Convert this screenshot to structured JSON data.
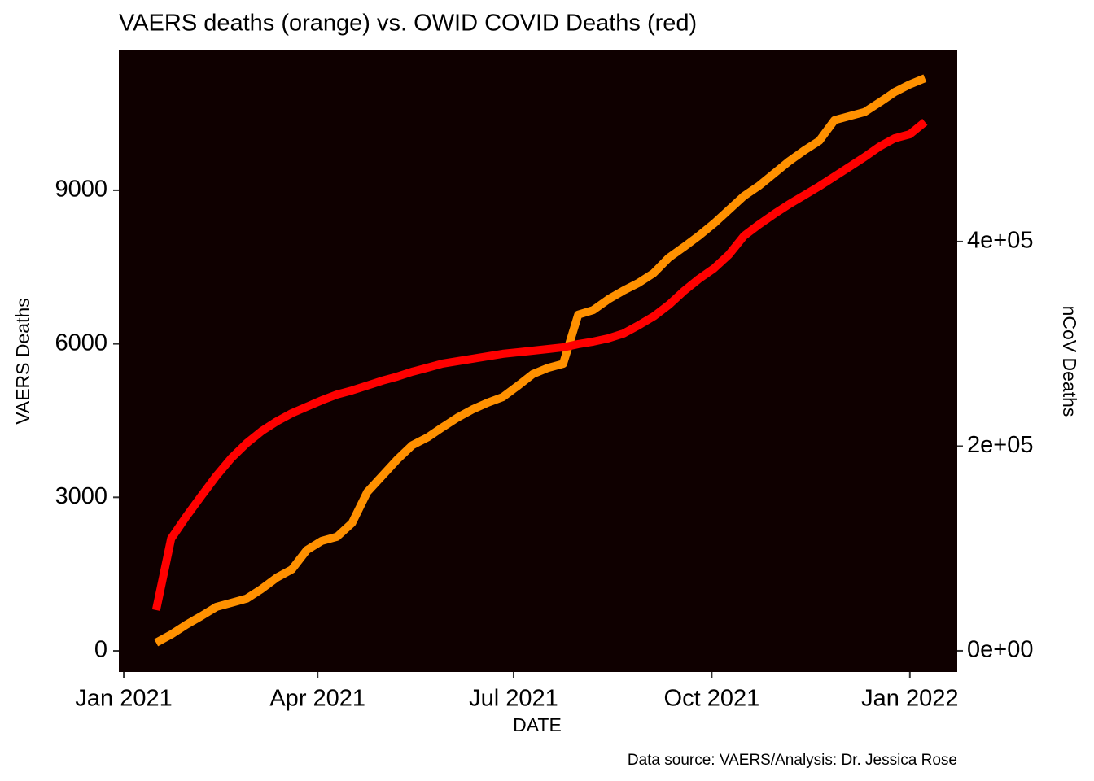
{
  "chart_data": {
    "type": "line",
    "title": "VAERS deaths (orange) vs. OWID COVID Deaths (red)",
    "x_label": "DATE",
    "y_label": "VAERS Deaths",
    "y2_label": "nCoV Deaths",
    "caption": "Data source: VAERS/Analysis: Dr. Jessica Rose",
    "background": "#0f0000",
    "x": [
      15,
      22,
      29,
      36,
      43,
      50,
      57,
      64,
      71,
      78,
      85,
      92,
      99,
      106,
      113,
      120,
      127,
      134,
      141,
      148,
      155,
      162,
      169,
      176,
      183,
      190,
      197,
      204,
      211,
      218,
      225,
      232,
      239,
      246,
      253,
      260,
      267,
      274,
      281,
      288,
      295,
      302,
      309,
      316,
      323,
      330,
      337,
      344,
      351,
      358,
      365,
      372
    ],
    "xlim": [
      -2.3,
      387
    ],
    "xticks": [
      {
        "value": 0,
        "label": "Jan 2021"
      },
      {
        "value": 90,
        "label": "Apr 2021"
      },
      {
        "value": 181,
        "label": "Jul 2021"
      },
      {
        "value": 273,
        "label": "Oct 2021"
      },
      {
        "value": 365,
        "label": "Jan 2022"
      }
    ],
    "ylim": [
      -413,
      11733
    ],
    "yticks": [
      0,
      3000,
      6000,
      9000
    ],
    "y2lim": [
      -20700,
      586800
    ],
    "y2ticks": [
      {
        "value": 0,
        "label": "0e+00"
      },
      {
        "value": 200000,
        "label": "2e+05"
      },
      {
        "value": 400000,
        "label": "4e+05"
      }
    ],
    "series": [
      {
        "color": "#ff9100",
        "values": [
          160,
          320,
          510,
          680,
          860,
          940,
          1020,
          1210,
          1430,
          1590,
          1970,
          2150,
          2230,
          2500,
          3100,
          3420,
          3740,
          4020,
          4170,
          4370,
          4560,
          4720,
          4850,
          4960,
          5180,
          5410,
          5530,
          5610,
          6570,
          6660,
          6870,
          7040,
          7190,
          7380,
          7680,
          7890,
          8110,
          8350,
          8620,
          8890,
          9090,
          9330,
          9570,
          9780,
          9970,
          10370,
          10450,
          10530,
          10720,
          10920,
          11070,
          11190
        ]
      },
      {
        "color": "#ff0000",
        "axis": "y2",
        "values": [
          39800,
          109700,
          131200,
          151300,
          171000,
          188500,
          202800,
          214700,
          224200,
          232200,
          238600,
          244900,
          250500,
          254500,
          259200,
          264000,
          268000,
          272800,
          276700,
          280700,
          283100,
          285500,
          287900,
          290300,
          291800,
          293400,
          295000,
          296600,
          299800,
          302200,
          305400,
          310100,
          318100,
          326800,
          338000,
          351500,
          363400,
          373700,
          387300,
          405600,
          416700,
          427000,
          436600,
          445300,
          454100,
          463600,
          473100,
          482700,
          493000,
          501000,
          504900,
          516900
        ]
      }
    ]
  }
}
